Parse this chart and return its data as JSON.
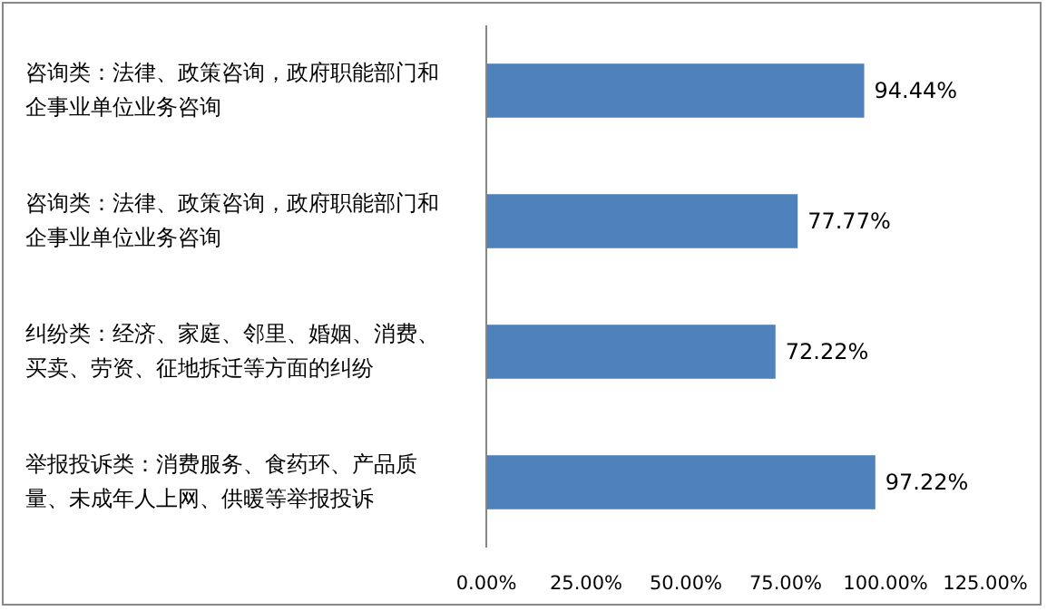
{
  "chart_data": {
    "type": "bar",
    "orientation": "horizontal",
    "categories": [
      "咨询类：法律、政策咨询，政府职能部门和企事业单位业务咨询",
      "咨询类：法律、政策咨询，政府职能部门和企事业单位业务咨询",
      "纠纷类：经济、家庭、邻里、婚姻、消费、买卖、劳资、征地拆迁等方面的纠纷",
      "举报投诉类：消费服务、食药环、产品质量、未成年人上网、供暖等举报投诉"
    ],
    "values": [
      94.44,
      77.77,
      72.22,
      97.22
    ],
    "value_labels": [
      "94.44%",
      "77.77%",
      "72.22%",
      "97.22%"
    ],
    "color": "#4f81bd",
    "xlim": [
      0,
      125
    ],
    "xticks": [
      {
        "value": 0,
        "label": "0.00%"
      },
      {
        "value": 25,
        "label": "25.00%"
      },
      {
        "value": 50,
        "label": "50.00%"
      },
      {
        "value": 75,
        "label": "75.00%"
      },
      {
        "value": 100,
        "label": "100.00%"
      },
      {
        "value": 125,
        "label": "125.00%"
      }
    ],
    "grid": false
  }
}
